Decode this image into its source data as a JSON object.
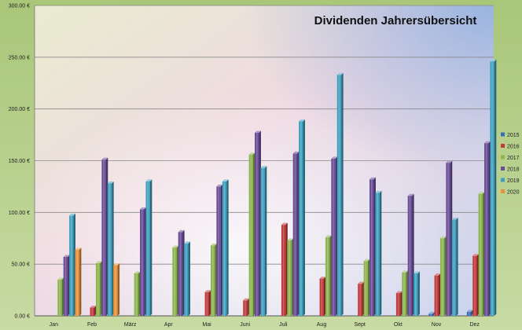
{
  "chart_data": {
    "type": "bar",
    "title": "Dividenden Jahrersübersicht",
    "xlabel": "",
    "ylabel": "",
    "ylim": [
      0,
      300
    ],
    "y_ticks": [
      "0.00 €",
      "50.00 €",
      "100.00 €",
      "150.00 €",
      "200.00 €",
      "250.00 €",
      "300.00 €"
    ],
    "y_tick_values": [
      0,
      50,
      100,
      150,
      200,
      250,
      300
    ],
    "grid": true,
    "legend_position": "right",
    "categories": [
      "Jan",
      "Feb",
      "März",
      "Apr",
      "Mai",
      "Juni",
      "Juli",
      "Aug",
      "Sept",
      "Okt",
      "Nov",
      "Dez"
    ],
    "series": [
      {
        "name": "2015",
        "color": "#3a6db5",
        "values": [
          0,
          0,
          0,
          0,
          0,
          0,
          0,
          0,
          0,
          0,
          2,
          4
        ]
      },
      {
        "name": "2016",
        "color": "#c0393b",
        "values": [
          0,
          8,
          0,
          0,
          23,
          15,
          88,
          36,
          31,
          22,
          39,
          58
        ]
      },
      {
        "name": "2017",
        "color": "#8db44e",
        "values": [
          35,
          51,
          41,
          66,
          68,
          156,
          73,
          76,
          53,
          42,
          75,
          118
        ]
      },
      {
        "name": "2018",
        "color": "#6a4c96",
        "values": [
          57,
          151,
          103,
          81,
          125,
          177,
          157,
          152,
          132,
          116,
          148,
          167
        ]
      },
      {
        "name": "2019",
        "color": "#3fa0be",
        "values": [
          97,
          128,
          130,
          70,
          130,
          143,
          188,
          233,
          119,
          41,
          93,
          246
        ]
      },
      {
        "name": "2020",
        "color": "#e8913a",
        "values": [
          64,
          49,
          0,
          0,
          0,
          0,
          0,
          0,
          0,
          0,
          0,
          0
        ]
      }
    ]
  }
}
